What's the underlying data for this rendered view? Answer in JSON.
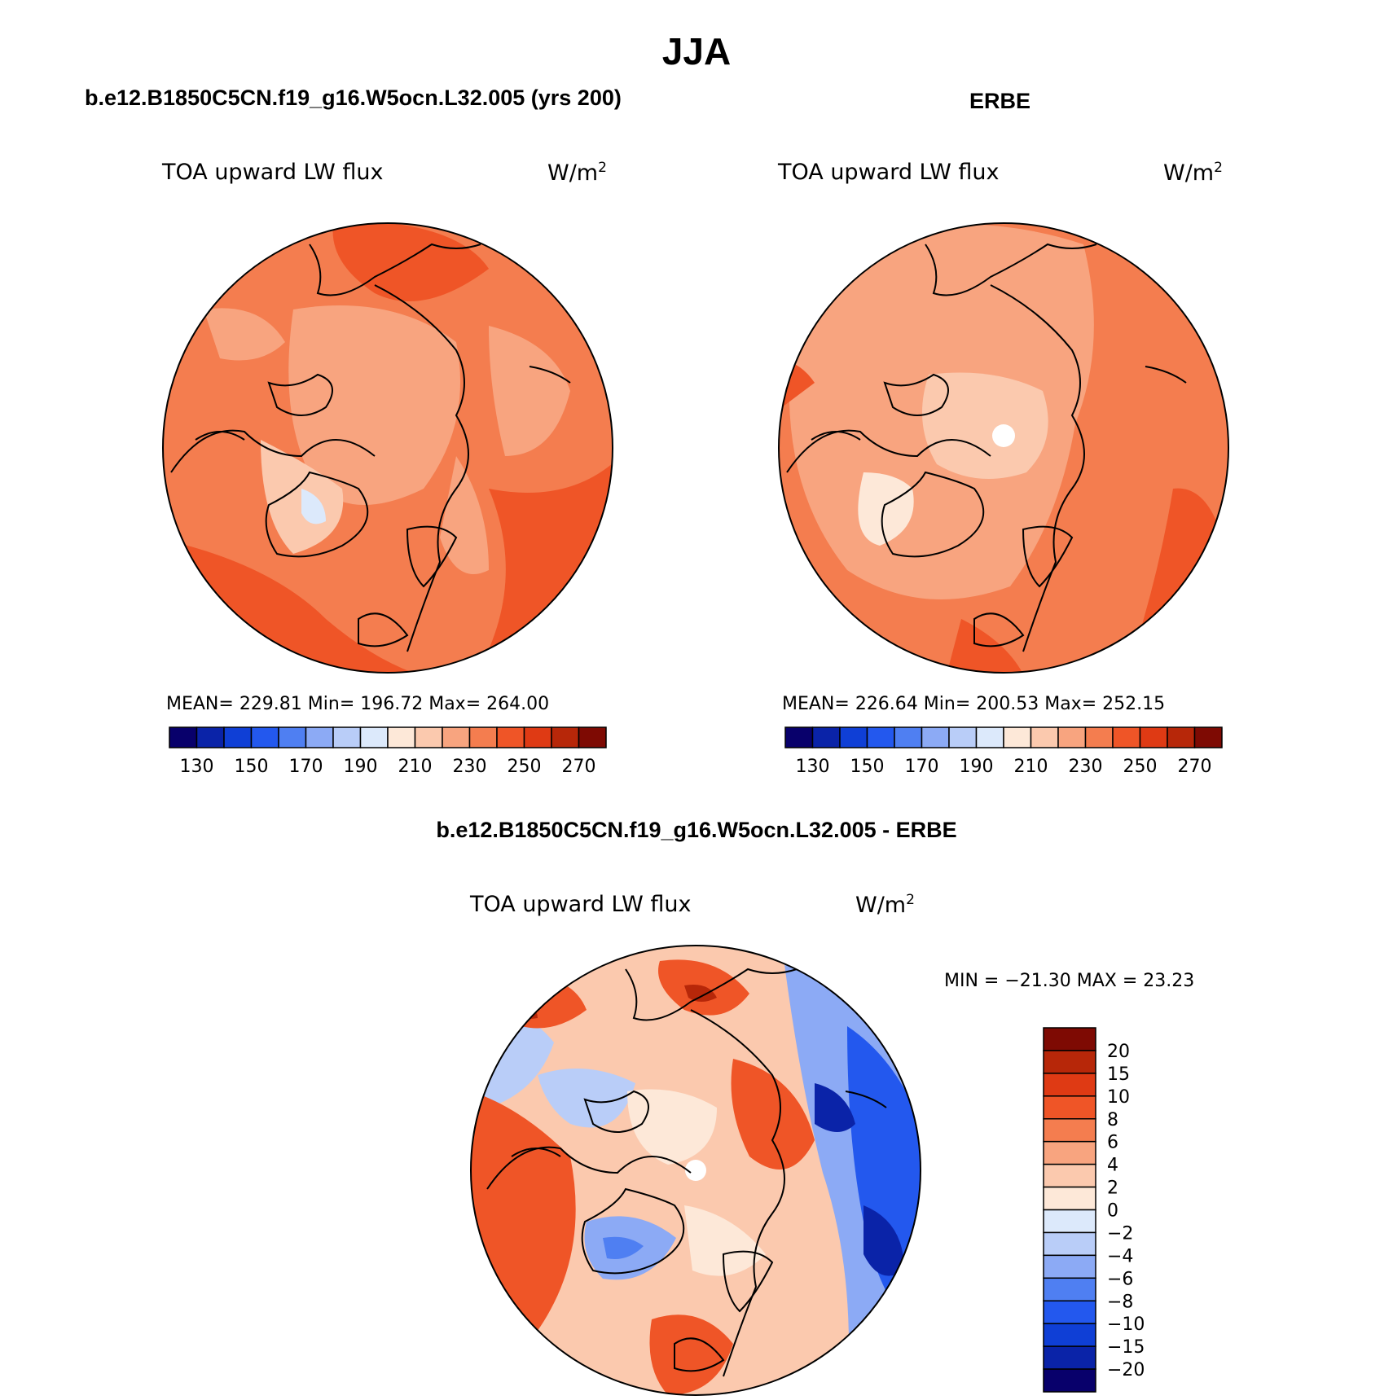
{
  "figure": {
    "title": "JJA"
  },
  "panels": [
    {
      "id": "model",
      "title": "b.e12.B1850C5CN.f19_g16.W5ocn.L32.005 (yrs 200)",
      "variable": "TOA upward LW flux",
      "units": "W/m",
      "units_exp": "2",
      "stats_text": "MEAN= 229.81   Min= 196.72   Max= 264.00"
    },
    {
      "id": "obs",
      "title": "ERBE",
      "variable": "TOA upward LW flux",
      "units": "W/m",
      "units_exp": "2",
      "stats_text": "MEAN= 226.64   Min= 200.53   Max= 252.15"
    },
    {
      "id": "diff",
      "title": "b.e12.B1850C5CN.f19_g16.W5ocn.L32.005 - ERBE",
      "variable": "TOA upward LW flux",
      "units": "W/m",
      "units_exp": "2",
      "stats_text": "MIN = −21.30 MAX =   23.23"
    }
  ],
  "chart_data": [
    {
      "type": "heatmap",
      "projection": "north-polar-stereographic",
      "title": "b.e12.B1850C5CN.f19_g16.W5ocn.L32.005 (yrs 200)",
      "field": "TOA upward LW flux",
      "units": "W/m^2",
      "mean": 229.81,
      "min": 196.72,
      "max": 264.0,
      "colorbar": {
        "orientation": "horizontal",
        "tick_labels": [
          "130",
          "150",
          "170",
          "190",
          "210",
          "230",
          "250",
          "270"
        ],
        "colors": [
          "#08006b",
          "#0a23a8",
          "#0f3fd6",
          "#2358ee",
          "#4f7ff2",
          "#8caaf5",
          "#b9cdf8",
          "#dce9fb",
          "#fde8d8",
          "#fbc9ae",
          "#f8a47f",
          "#f47d4f",
          "#ef5527",
          "#df3a14",
          "#b72709",
          "#7e0a03"
        ]
      }
    },
    {
      "type": "heatmap",
      "projection": "north-polar-stereographic",
      "title": "ERBE",
      "field": "TOA upward LW flux",
      "units": "W/m^2",
      "mean": 226.64,
      "min": 200.53,
      "max": 252.15,
      "colorbar": {
        "orientation": "horizontal",
        "tick_labels": [
          "130",
          "150",
          "170",
          "190",
          "210",
          "230",
          "250",
          "270"
        ],
        "colors": [
          "#08006b",
          "#0a23a8",
          "#0f3fd6",
          "#2358ee",
          "#4f7ff2",
          "#8caaf5",
          "#b9cdf8",
          "#dce9fb",
          "#fde8d8",
          "#fbc9ae",
          "#f8a47f",
          "#f47d4f",
          "#ef5527",
          "#df3a14",
          "#b72709",
          "#7e0a03"
        ]
      }
    },
    {
      "type": "heatmap",
      "projection": "north-polar-stereographic",
      "title": "b.e12.B1850C5CN.f19_g16.W5ocn.L32.005 - ERBE",
      "field": "TOA upward LW flux",
      "units": "W/m^2",
      "min": -21.3,
      "max": 23.23,
      "colorbar": {
        "orientation": "vertical",
        "tick_labels": [
          "20",
          "15",
          "10",
          "8",
          "6",
          "4",
          "2",
          "0",
          "−2",
          "−4",
          "−6",
          "−8",
          "−10",
          "−15",
          "−20"
        ],
        "colors": [
          "#7e0a03",
          "#b72709",
          "#df3a14",
          "#ef5527",
          "#f47d4f",
          "#f8a47f",
          "#fbc9ae",
          "#fde8d8",
          "#dce9fb",
          "#b9cdf8",
          "#8caaf5",
          "#4f7ff2",
          "#2358ee",
          "#0f3fd6",
          "#0a23a8",
          "#08006b"
        ]
      }
    }
  ],
  "colors": {
    "background": "#ffffff",
    "land_outline": "#000000",
    "missing": "#ffffff"
  }
}
